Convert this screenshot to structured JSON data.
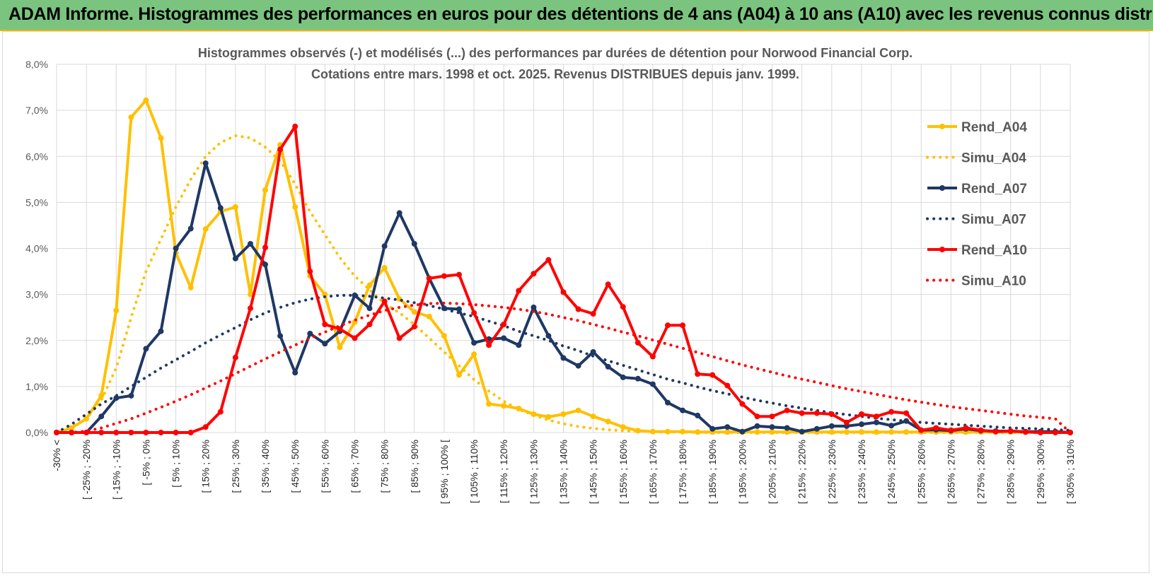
{
  "header": {
    "title": "ADAM Informe. Histogrammes des performances en euros pour des détentions de 4 ans (A04) à 10 ans (A10) avec les revenus connus distribués"
  },
  "colors": {
    "header_bg": "#7bc47f",
    "header_border": "#f0b400",
    "A04": "#ffc000",
    "A07": "#1f3864",
    "A10": "#ff0000",
    "grid": "#d9d9d9"
  },
  "chart_data": {
    "type": "line",
    "title": [
      "Histogrammes observés (-) et modélisés (...) des performances par durées de détention pour Norwood Financial Corp.",
      "Cotations entre mars. 1998 et oct. 2025. Revenus DISTRIBUES depuis janv. 1999."
    ],
    "xlabel": "",
    "ylabel": "",
    "ylim": [
      0,
      8
    ],
    "y_unit": "%",
    "yticks": [
      "0,0%",
      "1,0%",
      "2,0%",
      "3,0%",
      "4,0%",
      "5,0%",
      "6,0%",
      "7,0%",
      "8,0%"
    ],
    "xtick_labels": [
      "-30% <",
      "[ -25% ; -20%",
      "[ -15% ; -10%",
      "[ -5% ; 0%",
      "[ 5% ; 10%",
      "[ 15% ; 20%",
      "[ 25% ; 30%",
      "[ 35% ; 40%",
      "[ 45% ; 50%",
      "[ 55% ; 60%",
      "[ 65% ; 70%",
      "[ 75% ; 80%",
      "[ 85% ; 90%",
      "[ 95% ; 100% [",
      "[ 105% ; 110%",
      "[ 115% ; 120%",
      "[ 125% ; 130%",
      "[ 135% ; 140%",
      "[ 145% ; 150%",
      "[ 155% ; 160%",
      "[ 165% ; 170%",
      "[ 175% ; 180%",
      "[ 185% ; 190%",
      "[ 195% ; 200%",
      "[ 205% ; 210%",
      "[ 215% ; 220%",
      "[ 225% ; 230%",
      "[ 235% ; 240%",
      "[ 245% ; 250%",
      "[ 255% ; 260%",
      "[ 265% ; 270%",
      "[ 275% ; 280%",
      "[ 285% ; 290%",
      "[ 295% ; 300%",
      "[ 305% ; 310%"
    ],
    "n_points": 69,
    "legend_position": "right",
    "series": [
      {
        "name": "Rend_A04",
        "style": "solid",
        "color": "#ffc000",
        "values": [
          0.0,
          0.1,
          0.3,
          0.8,
          2.65,
          6.85,
          7.22,
          6.4,
          3.9,
          3.15,
          4.42,
          4.8,
          4.9,
          3.0,
          5.27,
          6.25,
          4.9,
          3.4,
          3.0,
          1.85,
          2.4,
          3.2,
          3.58,
          2.9,
          2.62,
          2.52,
          2.1,
          1.25,
          1.7,
          0.62,
          0.58,
          0.52,
          0.4,
          0.34,
          0.4,
          0.48,
          0.35,
          0.24,
          0.12,
          0.04,
          0.02,
          0.02,
          0.02,
          0.01,
          0.01,
          0.01,
          0.01,
          0.01,
          0.01,
          0.01,
          0.01,
          0.01,
          0.01,
          0.01,
          0.01,
          0.01,
          0.01,
          0.01,
          0.01,
          0.01,
          0.01,
          0.01,
          0.01,
          0.01,
          0.01,
          0.01,
          0.01,
          0.01,
          0.0
        ]
      },
      {
        "name": "Simu_A04",
        "style": "dotted",
        "color": "#ffc000",
        "values": [
          0.0,
          0.12,
          0.3,
          0.7,
          1.4,
          2.5,
          3.5,
          4.2,
          4.9,
          5.5,
          6.0,
          6.3,
          6.45,
          6.4,
          6.2,
          5.9,
          5.4,
          4.8,
          4.3,
          3.8,
          3.4,
          3.1,
          2.8,
          2.6,
          2.35,
          2.05,
          1.75,
          1.45,
          1.15,
          0.9,
          0.68,
          0.5,
          0.38,
          0.27,
          0.19,
          0.13,
          0.09,
          0.06,
          0.04,
          0.03,
          0.02,
          0.01,
          0.01,
          0.0,
          0.0,
          0.0,
          0.0,
          0.0,
          0.0,
          0.0,
          0.0,
          0.0,
          0.0,
          0.0,
          0.0,
          0.0,
          0.0,
          0.0,
          0.0,
          0.0,
          0.0,
          0.0,
          0.0,
          0.0,
          0.0,
          0.0,
          0.0,
          0.0,
          0.0
        ]
      },
      {
        "name": "Rend_A07",
        "style": "solid",
        "color": "#1f3864",
        "values": [
          0.0,
          0.0,
          0.0,
          0.35,
          0.75,
          0.8,
          1.82,
          2.2,
          4.0,
          4.43,
          5.85,
          4.88,
          3.78,
          4.1,
          3.65,
          2.1,
          1.3,
          2.15,
          1.93,
          2.2,
          2.98,
          2.7,
          4.05,
          4.77,
          4.1,
          3.35,
          2.7,
          2.68,
          1.95,
          2.03,
          2.05,
          1.9,
          2.72,
          2.1,
          1.62,
          1.45,
          1.75,
          1.43,
          1.2,
          1.17,
          1.05,
          0.65,
          0.48,
          0.37,
          0.08,
          0.12,
          0.02,
          0.14,
          0.12,
          0.1,
          0.02,
          0.08,
          0.14,
          0.14,
          0.18,
          0.22,
          0.15,
          0.25,
          0.05,
          0.06,
          0.04,
          0.08,
          0.04,
          0.03,
          0.03,
          0.02,
          0.02,
          0.02,
          0.0
        ]
      },
      {
        "name": "Simu_A07",
        "style": "dotted",
        "color": "#1f3864",
        "values": [
          0.0,
          0.18,
          0.4,
          0.62,
          0.8,
          1.0,
          1.2,
          1.4,
          1.58,
          1.76,
          1.95,
          2.12,
          2.28,
          2.45,
          2.6,
          2.72,
          2.82,
          2.9,
          2.95,
          2.98,
          2.98,
          2.96,
          2.92,
          2.88,
          2.82,
          2.76,
          2.68,
          2.6,
          2.52,
          2.42,
          2.32,
          2.2,
          2.1,
          2.0,
          1.88,
          1.78,
          1.66,
          1.56,
          1.46,
          1.36,
          1.26,
          1.16,
          1.08,
          0.99,
          0.91,
          0.84,
          0.77,
          0.7,
          0.64,
          0.58,
          0.53,
          0.48,
          0.43,
          0.39,
          0.35,
          0.31,
          0.28,
          0.25,
          0.22,
          0.2,
          0.18,
          0.16,
          0.14,
          0.12,
          0.1,
          0.09,
          0.08,
          0.06,
          0.05
        ]
      },
      {
        "name": "Rend_A10",
        "style": "solid",
        "color": "#ff0000",
        "values": [
          0.0,
          0.0,
          0.0,
          0.0,
          0.0,
          0.0,
          0.0,
          0.0,
          0.0,
          0.0,
          0.12,
          0.45,
          1.63,
          2.7,
          4.02,
          6.15,
          6.65,
          3.5,
          2.35,
          2.25,
          2.05,
          2.35,
          2.85,
          2.05,
          2.3,
          3.35,
          3.4,
          3.43,
          2.6,
          1.9,
          2.35,
          3.08,
          3.45,
          3.75,
          3.05,
          2.68,
          2.58,
          3.22,
          2.73,
          1.95,
          1.65,
          2.33,
          2.33,
          1.27,
          1.25,
          1.02,
          0.62,
          0.35,
          0.35,
          0.48,
          0.42,
          0.42,
          0.4,
          0.22,
          0.4,
          0.35,
          0.45,
          0.42,
          0.05,
          0.1,
          0.05,
          0.1,
          0.05,
          0.02,
          0.03,
          0.01,
          0.0,
          0.0,
          0.0
        ]
      },
      {
        "name": "Simu_A10",
        "style": "dotted",
        "color": "#ff0000",
        "values": [
          0.0,
          0.0,
          0.03,
          0.1,
          0.2,
          0.3,
          0.42,
          0.55,
          0.68,
          0.82,
          0.97,
          1.12,
          1.28,
          1.44,
          1.6,
          1.75,
          1.9,
          2.05,
          2.18,
          2.32,
          2.44,
          2.55,
          2.65,
          2.72,
          2.77,
          2.8,
          2.81,
          2.8,
          2.78,
          2.75,
          2.72,
          2.68,
          2.63,
          2.57,
          2.5,
          2.43,
          2.35,
          2.27,
          2.18,
          2.1,
          2.01,
          1.92,
          1.83,
          1.74,
          1.65,
          1.56,
          1.47,
          1.39,
          1.31,
          1.23,
          1.16,
          1.09,
          1.02,
          0.95,
          0.89,
          0.83,
          0.77,
          0.71,
          0.66,
          0.61,
          0.56,
          0.52,
          0.48,
          0.44,
          0.4,
          0.36,
          0.33,
          0.3,
          0.0
        ]
      }
    ]
  }
}
